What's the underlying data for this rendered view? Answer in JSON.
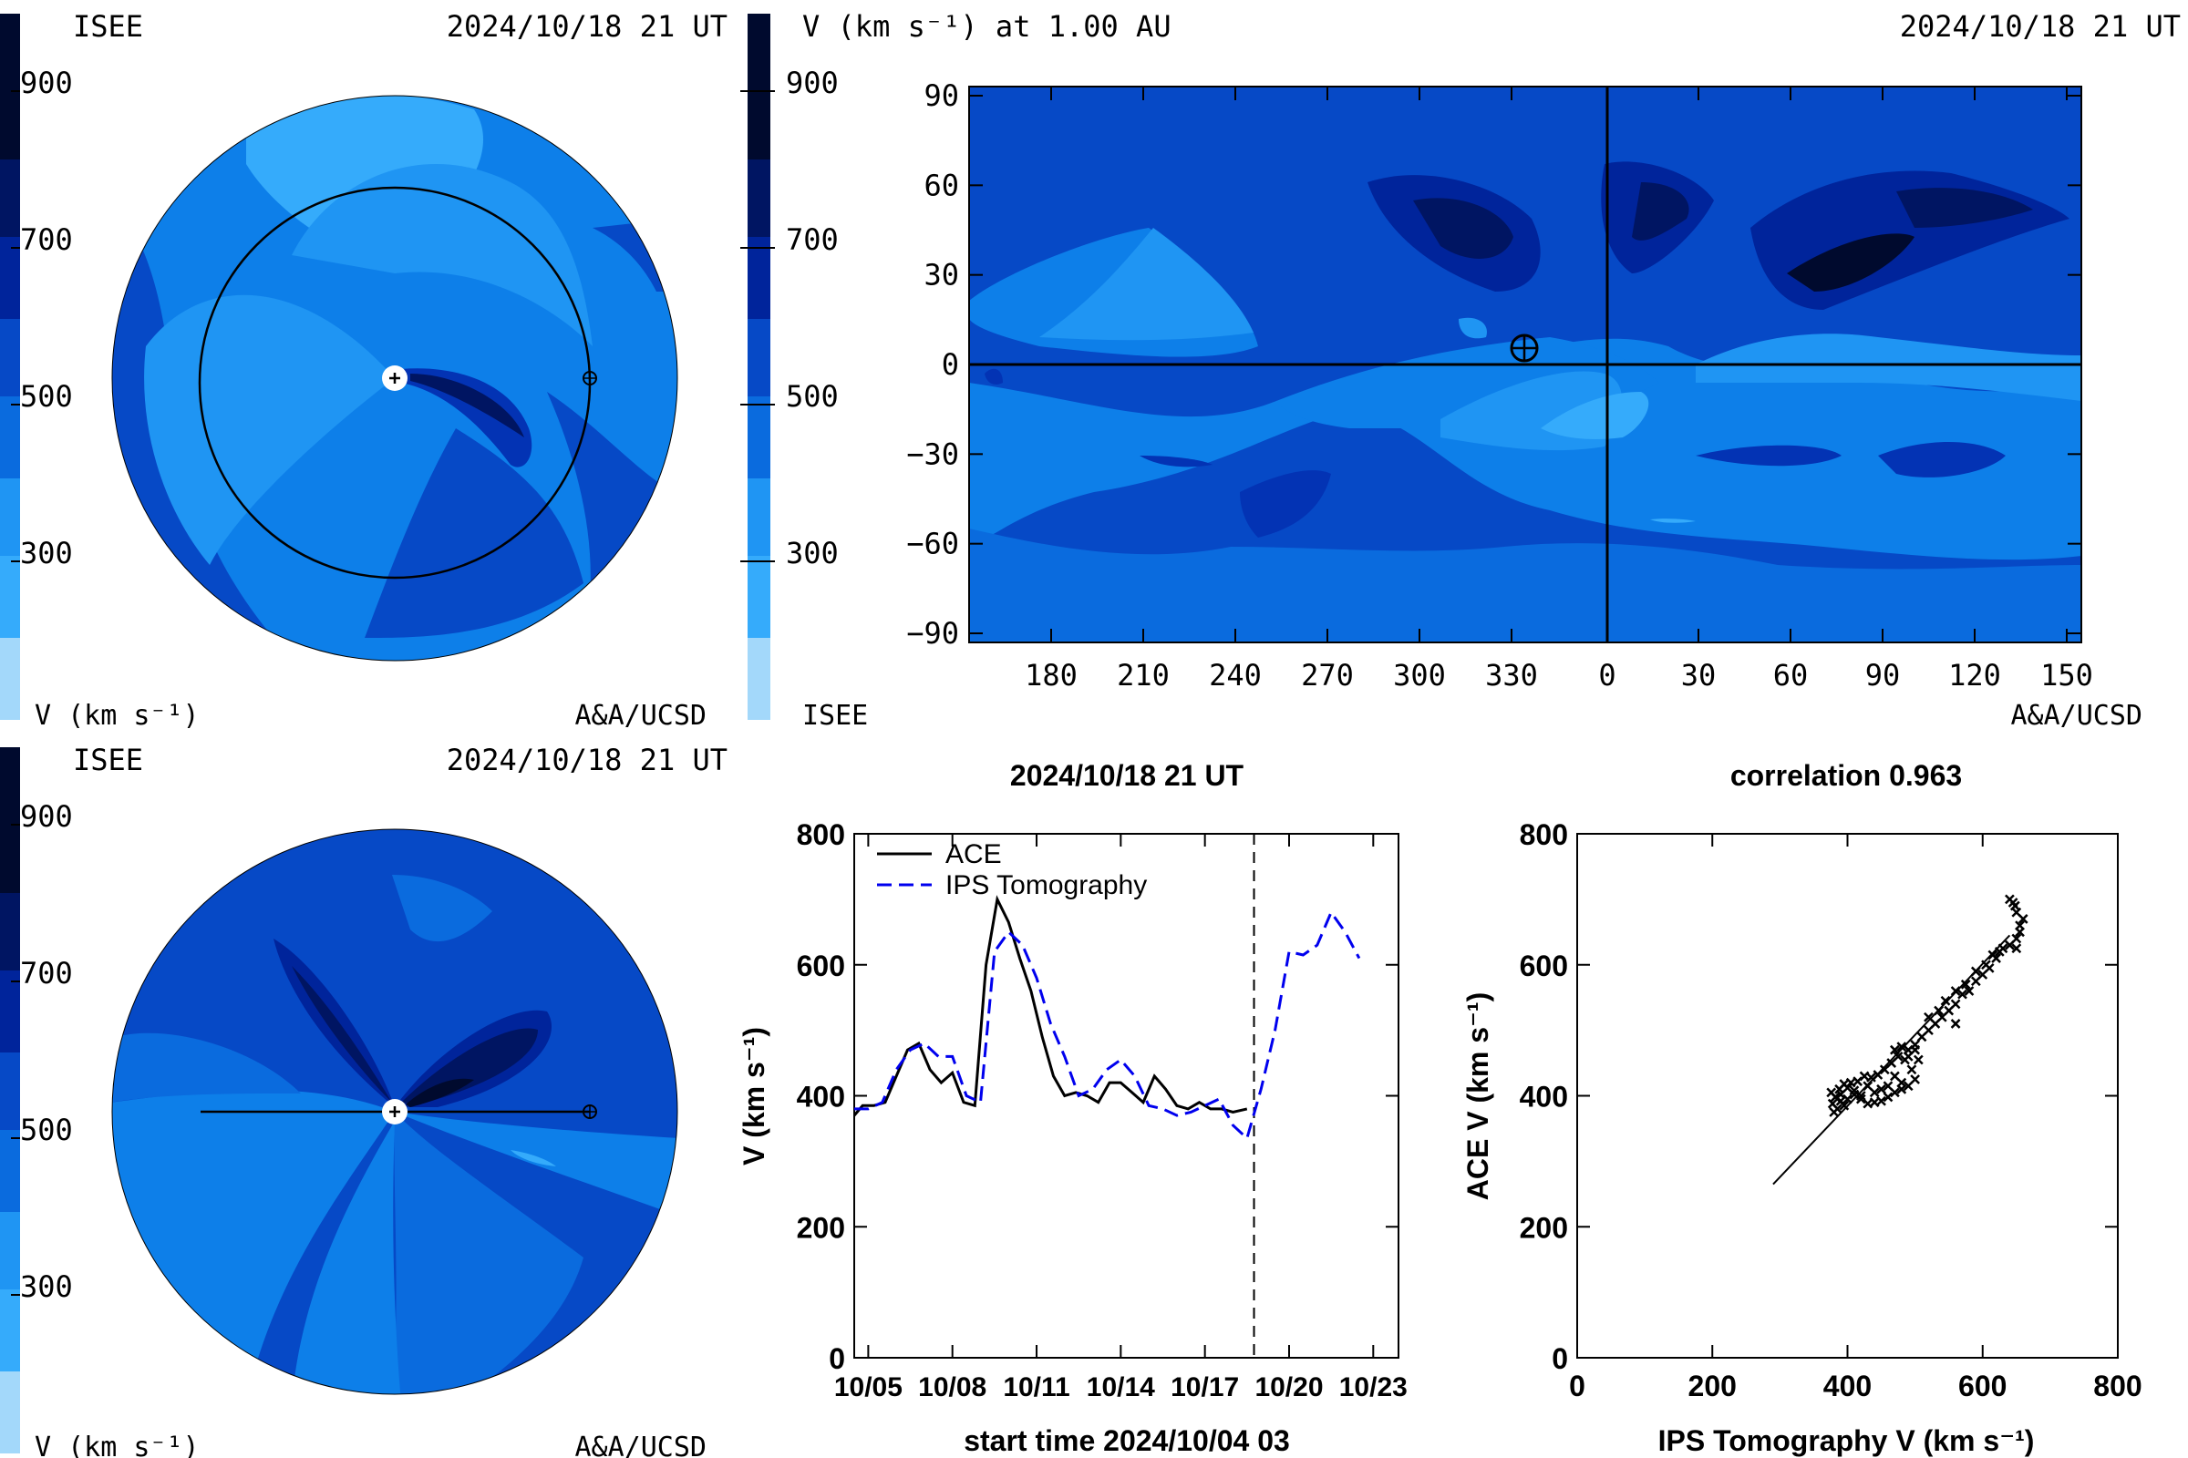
{
  "colors": {
    "level_900": "#000a2e",
    "level_800": "#001562",
    "level_700": "#00249b",
    "level_600": "#0333b4",
    "level_500": "#0649c6",
    "level_450": "#0a6bde",
    "level_400": "#0d7fe9",
    "level_350": "#1f95f3",
    "level_300": "#35abfb",
    "level_200": "#a3d8fa",
    "ace_line": "#000000",
    "ips_line": "#0000ee"
  },
  "panel_top_left": {
    "org": "ISEE",
    "date": "2024/10/18 21 UT",
    "footer_left": "V (km s⁻¹)",
    "footer_right": "A&A/UCSD",
    "scale_ticks": [
      "900",
      "700",
      "500",
      "300"
    ]
  },
  "panel_bottom_left": {
    "org": "ISEE",
    "date": "2024/10/18 21 UT",
    "footer_left": "V (km s⁻¹)",
    "footer_right": "A&A/UCSD",
    "scale_ticks": [
      "900",
      "700",
      "500",
      "300"
    ]
  },
  "panel_map": {
    "title": "V (km s⁻¹) at 1.00 AU",
    "date": "2024/10/18 21 UT",
    "footer_left": "ISEE",
    "footer_right": "A&A/UCSD",
    "scale_ticks": [
      "900",
      "700",
      "500",
      "300"
    ],
    "y_ticks": [
      "90",
      "60",
      "30",
      "0",
      "−30",
      "−60",
      "−90"
    ],
    "x_ticks": [
      "180",
      "210",
      "240",
      "270",
      "300",
      "330",
      "0",
      "30",
      "60",
      "90",
      "120",
      "150"
    ]
  },
  "chart_data": [
    {
      "type": "line",
      "title": "2024/10/18 21 UT",
      "xlabel": "start time 2024/10/04 03",
      "ylabel": "V (km s⁻¹)",
      "ylim": [
        0,
        800
      ],
      "xlim": [
        0.5,
        19.9
      ],
      "x_tick_labels": [
        "10/05",
        "10/08",
        "10/11",
        "10/14",
        "10/17",
        "10/20",
        "10/23"
      ],
      "x_tick_days": [
        1,
        4,
        7,
        10,
        13,
        16,
        19
      ],
      "y_tick_labels": [
        "800",
        "600",
        "400",
        "200",
        "0"
      ],
      "current_time_day": 14.75,
      "legend": "top-left",
      "series": [
        {
          "name": "ACE",
          "style": "solid",
          "x": [
            0.5,
            0.8,
            1.2,
            1.6,
            2.0,
            2.4,
            2.8,
            3.2,
            3.6,
            4.0,
            4.4,
            4.8,
            5.2,
            5.6,
            6.0,
            6.4,
            6.8,
            7.2,
            7.6,
            8.0,
            8.4,
            8.8,
            9.2,
            9.6,
            10.0,
            10.4,
            10.8,
            11.2,
            11.6,
            12.0,
            12.4,
            12.8,
            13.2,
            13.6,
            14.0,
            14.5
          ],
          "y": [
            370,
            385,
            385,
            390,
            430,
            470,
            480,
            440,
            420,
            435,
            390,
            385,
            600,
            700,
            665,
            610,
            560,
            490,
            430,
            400,
            405,
            400,
            390,
            420,
            420,
            405,
            390,
            430,
            410,
            385,
            380,
            390,
            380,
            380,
            375,
            380
          ]
        },
        {
          "name": "IPS Tomography",
          "style": "dashed",
          "x": [
            0.5,
            1.0,
            1.5,
            2.0,
            2.5,
            3.0,
            3.5,
            4.0,
            4.5,
            5.0,
            5.5,
            6.0,
            6.5,
            7.0,
            7.5,
            8.0,
            8.5,
            9.0,
            9.5,
            10.0,
            10.5,
            11.0,
            11.5,
            12.0,
            12.5,
            13.0,
            13.5,
            14.0,
            14.5,
            15.0,
            15.5,
            16.0,
            16.5,
            17.0,
            17.5,
            18.0,
            18.5,
            19.0,
            19.5
          ],
          "y": [
            380,
            380,
            390,
            440,
            470,
            480,
            460,
            460,
            400,
            390,
            620,
            650,
            630,
            580,
            510,
            460,
            400,
            410,
            440,
            455,
            430,
            385,
            380,
            370,
            375,
            385,
            395,
            355,
            335,
            410,
            500,
            620,
            615,
            630,
            680,
            650,
            610,
            null,
            null
          ]
        }
      ]
    },
    {
      "type": "scatter",
      "title": "correlation 0.963",
      "xlabel": "IPS Tomography V (km s⁻¹)",
      "ylabel": "ACE V (km s⁻¹)",
      "xlim": [
        0,
        800
      ],
      "ylim": [
        0,
        800
      ],
      "x_tick_labels": [
        "0",
        "200",
        "400",
        "600",
        "800"
      ],
      "y_tick_labels": [
        "800",
        "600",
        "400",
        "200",
        "0"
      ],
      "fit_line": [
        [
          290,
          265
        ],
        [
          640,
          645
        ]
      ],
      "points": [
        [
          380,
          375
        ],
        [
          385,
          380
        ],
        [
          378,
          388
        ],
        [
          390,
          392
        ],
        [
          395,
          385
        ],
        [
          382,
          398
        ],
        [
          376,
          405
        ],
        [
          388,
          410
        ],
        [
          400,
          412
        ],
        [
          410,
          402
        ],
        [
          420,
          395
        ],
        [
          430,
          388
        ],
        [
          440,
          390
        ],
        [
          450,
          392
        ],
        [
          460,
          398
        ],
        [
          470,
          405
        ],
        [
          480,
          410
        ],
        [
          490,
          415
        ],
        [
          500,
          425
        ],
        [
          495,
          440
        ],
        [
          485,
          455
        ],
        [
          475,
          460
        ],
        [
          465,
          450
        ],
        [
          455,
          440
        ],
        [
          445,
          432
        ],
        [
          435,
          428
        ],
        [
          425,
          430
        ],
        [
          415,
          422
        ],
        [
          405,
          420
        ],
        [
          395,
          418
        ],
        [
          470,
          470
        ],
        [
          480,
          475
        ],
        [
          490,
          470
        ],
        [
          500,
          478
        ],
        [
          510,
          490
        ],
        [
          520,
          500
        ],
        [
          530,
          510
        ],
        [
          540,
          520
        ],
        [
          550,
          530
        ],
        [
          560,
          540
        ],
        [
          570,
          555
        ],
        [
          580,
          560
        ],
        [
          590,
          575
        ],
        [
          600,
          585
        ],
        [
          610,
          595
        ],
        [
          620,
          610
        ],
        [
          630,
          625
        ],
        [
          640,
          630
        ],
        [
          650,
          640
        ],
        [
          655,
          660
        ],
        [
          650,
          680
        ],
        [
          645,
          695
        ],
        [
          640,
          700
        ],
        [
          648,
          690
        ],
        [
          660,
          670
        ],
        [
          655,
          650
        ],
        [
          650,
          625
        ],
        [
          500,
          470
        ],
        [
          490,
          460
        ],
        [
          505,
          455
        ],
        [
          470,
          430
        ],
        [
          480,
          420
        ],
        [
          460,
          415
        ],
        [
          450,
          410
        ],
        [
          440,
          405
        ],
        [
          420,
          400
        ],
        [
          400,
          395
        ],
        [
          390,
          402
        ],
        [
          410,
          408
        ],
        [
          430,
          415
        ],
        [
          520,
          520
        ],
        [
          535,
          530
        ],
        [
          545,
          545
        ],
        [
          560,
          560
        ],
        [
          575,
          570
        ],
        [
          590,
          590
        ],
        [
          605,
          600
        ],
        [
          615,
          615
        ],
        [
          625,
          620
        ],
        [
          560,
          510
        ]
      ]
    }
  ]
}
